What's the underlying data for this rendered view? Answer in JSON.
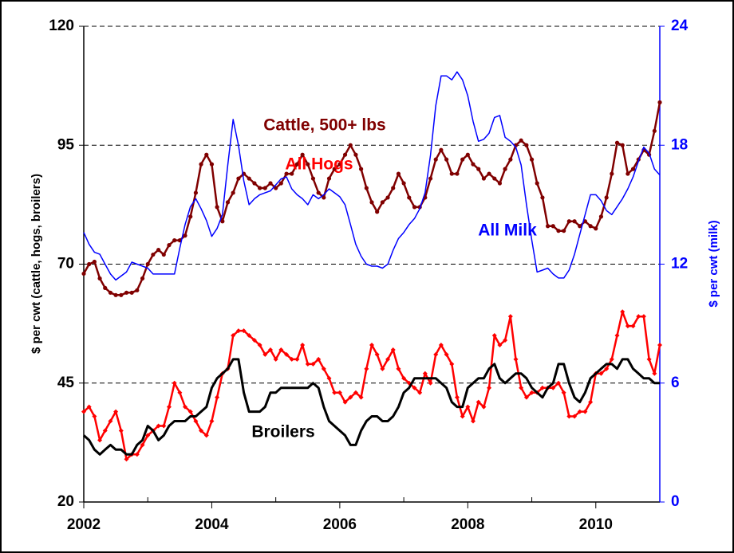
{
  "chart_data": {
    "type": "line",
    "ylabel": "$ per cwt (cattle, hogs, broilers)",
    "y2label": "$ per cwt (milk)",
    "xlim": [
      2002,
      2011
    ],
    "xticks": [
      2002,
      2004,
      2006,
      2008,
      2010
    ],
    "minor_xticks": [
      2003,
      2005,
      2007,
      2009,
      2011
    ],
    "ylim": [
      20,
      120
    ],
    "yticks": [
      20,
      45,
      70,
      95,
      120
    ],
    "y2lim": [
      0,
      24
    ],
    "y2ticks": [
      0,
      6,
      12,
      18,
      24
    ],
    "y2color": "#0000ff",
    "grid": true,
    "x": [
      2002,
      2002.083,
      2002.167,
      2002.25,
      2002.333,
      2002.417,
      2002.5,
      2002.583,
      2002.667,
      2002.75,
      2002.833,
      2002.917,
      2003,
      2003.083,
      2003.167,
      2003.25,
      2003.333,
      2003.417,
      2003.5,
      2003.583,
      2003.667,
      2003.75,
      2003.833,
      2003.917,
      2004,
      2004.083,
      2004.167,
      2004.25,
      2004.333,
      2004.417,
      2004.5,
      2004.583,
      2004.667,
      2004.75,
      2004.833,
      2004.917,
      2005,
      2005.083,
      2005.167,
      2005.25,
      2005.333,
      2005.417,
      2005.5,
      2005.583,
      2005.667,
      2005.75,
      2005.833,
      2005.917,
      2006,
      2006.083,
      2006.167,
      2006.25,
      2006.333,
      2006.417,
      2006.5,
      2006.583,
      2006.667,
      2006.75,
      2006.833,
      2006.917,
      2007,
      2007.083,
      2007.167,
      2007.25,
      2007.333,
      2007.417,
      2007.5,
      2007.583,
      2007.667,
      2007.75,
      2007.833,
      2007.917,
      2008,
      2008.083,
      2008.167,
      2008.25,
      2008.333,
      2008.417,
      2008.5,
      2008.583,
      2008.667,
      2008.75,
      2008.833,
      2008.917,
      2009,
      2009.083,
      2009.167,
      2009.25,
      2009.333,
      2009.417,
      2009.5,
      2009.583,
      2009.667,
      2009.75,
      2009.833,
      2009.917,
      2010,
      2010.083,
      2010.167,
      2010.25,
      2010.333,
      2010.417,
      2010.5,
      2010.583,
      2010.667,
      2010.75,
      2010.833,
      2010.917,
      2011
    ],
    "series": [
      {
        "name": "Cattle, 500+ lbs",
        "color": "#800000",
        "marker": "circle",
        "values": [
          68,
          70,
          70.5,
          67,
          65,
          64,
          63.5,
          63.5,
          64,
          64,
          64.5,
          67,
          70,
          72,
          73,
          72,
          74,
          75,
          75,
          76,
          80,
          85,
          91,
          93,
          91,
          82,
          79,
          83,
          85,
          88,
          89,
          88,
          87,
          86,
          86,
          87,
          86,
          87,
          89,
          89,
          91,
          93,
          91,
          88,
          85,
          84,
          88,
          90,
          91,
          93,
          95,
          93,
          90,
          86,
          83,
          81,
          83,
          84,
          86,
          89,
          87,
          84,
          82,
          82,
          84,
          88,
          92,
          94,
          92,
          89,
          89,
          92,
          93,
          91,
          90,
          88,
          89,
          88,
          87,
          90,
          92,
          95,
          96,
          95,
          92,
          87,
          84,
          78,
          78,
          77,
          77,
          79,
          79,
          78,
          79,
          78,
          77.5,
          80,
          84,
          89,
          95.5,
          95,
          89,
          90,
          92,
          94,
          93,
          98,
          104
        ]
      },
      {
        "name": "All Milk",
        "color": "#0000ff",
        "axis": "y2",
        "values": [
          13.6,
          13.0,
          12.6,
          12.5,
          12.0,
          11.5,
          11.2,
          11.4,
          11.6,
          12.1,
          12.0,
          11.9,
          11.8,
          11.5,
          11.5,
          11.5,
          11.5,
          11.5,
          12.8,
          14.0,
          14.9,
          15.3,
          14.8,
          14.2,
          13.4,
          13.8,
          14.5,
          17.0,
          19.3,
          18.0,
          16.2,
          15.0,
          15.3,
          15.5,
          15.6,
          15.7,
          16.0,
          16.3,
          16.4,
          15.8,
          15.5,
          15.3,
          15.0,
          15.5,
          15.3,
          15.5,
          15.8,
          15.6,
          15.4,
          15.0,
          14.0,
          13.0,
          12.4,
          12.0,
          11.9,
          11.9,
          11.8,
          12.0,
          12.7,
          13.3,
          13.6,
          14.0,
          14.3,
          14.8,
          15.6,
          17.5,
          20.0,
          21.5,
          21.5,
          21.3,
          21.7,
          21.3,
          20.5,
          19.2,
          18.2,
          18.3,
          18.6,
          19.4,
          19.5,
          18.4,
          18.2,
          17.9,
          17.0,
          15.0,
          13.2,
          11.6,
          11.7,
          11.8,
          11.5,
          11.3,
          11.3,
          11.7,
          12.5,
          13.5,
          14.5,
          15.5,
          15.5,
          15.2,
          14.7,
          14.5,
          14.9,
          15.3,
          15.8,
          16.4,
          17.2,
          17.9,
          17.6,
          16.8,
          16.5
        ]
      },
      {
        "name": "All Hogs",
        "color": "#ff0000",
        "marker": "diamond",
        "values": [
          39,
          40,
          38,
          33,
          35,
          37,
          39,
          35,
          29,
          30,
          30,
          32,
          34,
          35,
          36,
          36,
          40,
          45,
          43,
          40,
          39,
          37,
          35,
          34,
          37,
          42,
          47,
          48,
          55,
          56,
          56,
          55,
          54,
          53,
          51,
          52,
          50,
          52,
          51,
          50,
          50,
          53,
          49,
          49,
          50,
          48,
          46,
          43,
          43,
          41,
          42,
          43,
          42,
          48,
          53,
          51,
          48,
          50,
          52,
          48,
          46,
          45,
          44,
          43,
          47,
          45,
          51,
          53,
          51,
          49,
          42,
          38,
          40,
          37,
          41,
          40,
          44,
          55,
          53,
          54,
          59,
          50,
          44,
          42,
          43,
          43,
          44,
          44,
          44,
          45,
          43,
          38,
          38,
          39,
          39,
          41,
          47,
          47,
          48,
          50,
          55,
          60,
          57,
          57,
          59,
          59,
          50,
          47,
          53
        ]
      },
      {
        "name": "Broilers",
        "color": "#000000",
        "values": [
          34,
          33,
          31,
          30,
          31,
          32,
          31,
          31,
          30,
          30,
          32,
          33,
          36,
          35,
          33,
          34,
          36,
          37,
          37,
          37,
          38,
          38,
          39,
          40,
          44,
          46,
          47,
          48,
          50,
          50,
          43,
          39,
          39,
          39,
          40,
          43,
          43,
          44,
          44,
          44,
          44,
          44,
          44,
          45,
          44,
          40,
          37,
          36,
          35,
          34,
          32,
          32,
          35,
          37,
          38,
          38,
          37,
          37,
          38,
          40,
          43,
          44,
          46,
          46,
          46,
          46,
          46,
          45,
          44,
          41,
          40,
          40,
          44,
          45,
          46,
          46,
          48,
          49,
          46,
          45,
          46,
          47,
          47,
          46,
          44,
          43,
          42,
          44,
          45,
          49,
          49,
          45,
          42,
          41,
          43,
          46,
          47,
          48,
          49,
          49,
          48,
          50,
          50,
          48,
          47,
          46,
          46,
          45,
          45
        ]
      }
    ]
  }
}
